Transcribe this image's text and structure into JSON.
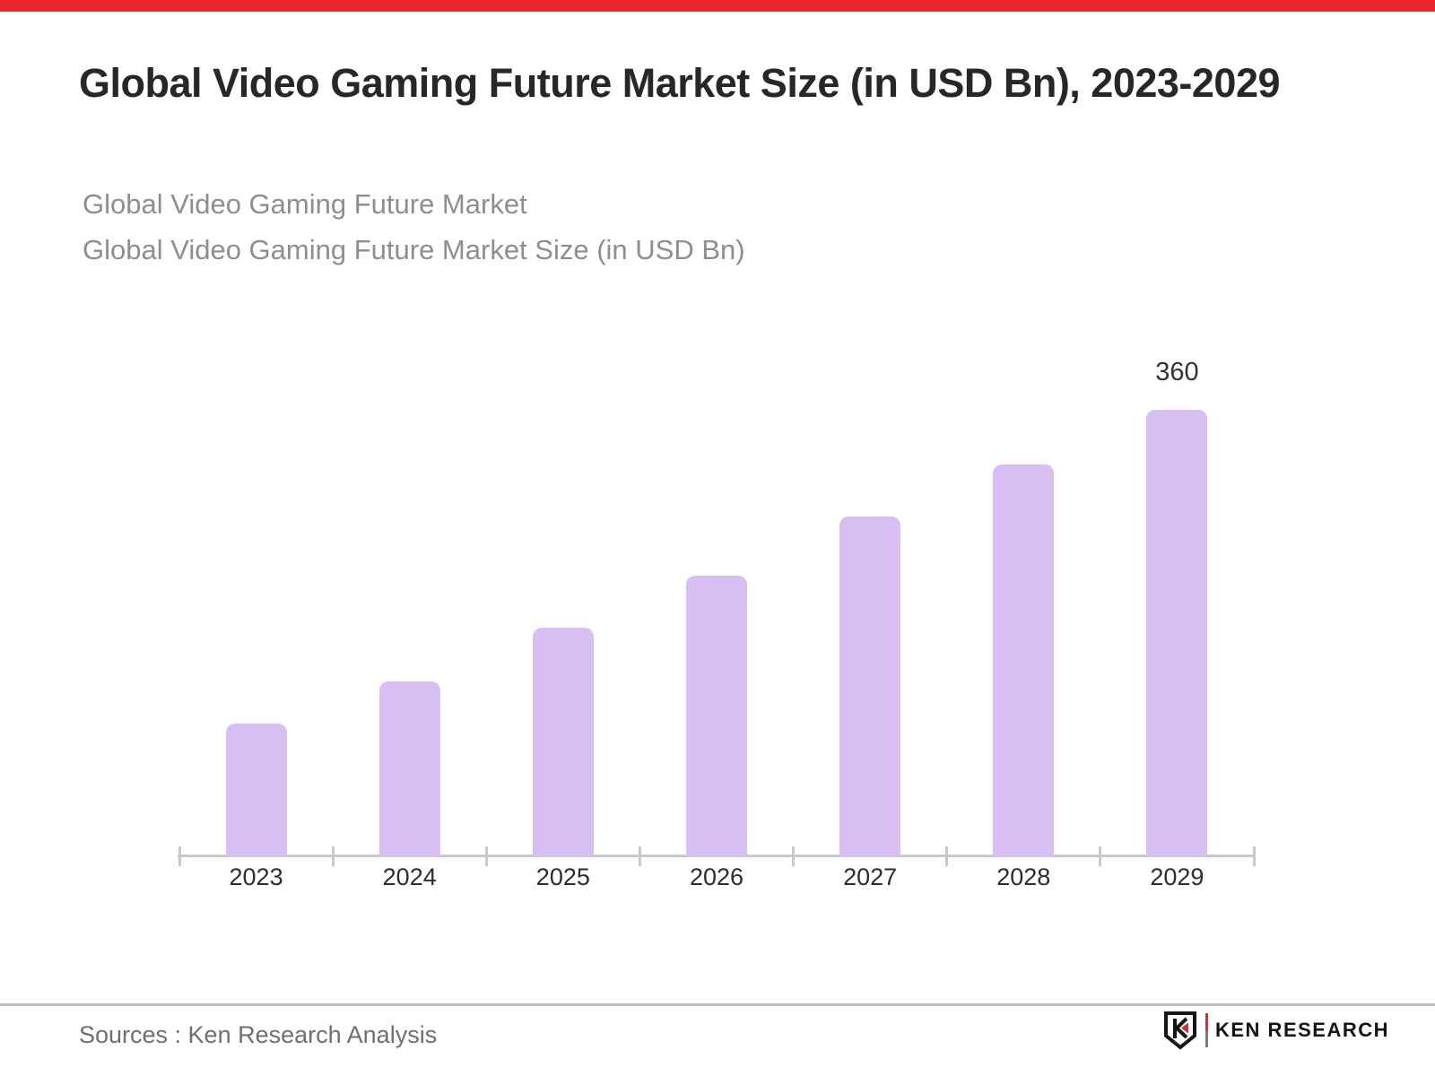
{
  "header": {
    "title": "Global Video Gaming Future Market Size (in USD Bn), 2023-2029",
    "subtitle1": "Global Video Gaming Future Market",
    "subtitle2": "Global Video Gaming Future Market Size (in USD Bn)"
  },
  "chart_data": {
    "type": "bar",
    "title": "Global Video Gaming Future Market Size (in USD Bn), 2023-2029",
    "categories": [
      "2023",
      "2024",
      "2025",
      "2026",
      "2027",
      "2028",
      "2029"
    ],
    "values": [
      107,
      141,
      184,
      226,
      274,
      316,
      360
    ],
    "bar_labels": [
      "",
      "",
      "",
      "",
      "",
      "",
      "360"
    ],
    "xlabel": "",
    "ylabel": "",
    "ylim": [
      0,
      380
    ],
    "grid": false,
    "legend": false
  },
  "footer": {
    "source_text": "Sources : Ken Research Analysis",
    "logo_text": "KEN RESEARCH"
  },
  "colors": {
    "accent_red": "#e8262d",
    "bar_fill": "#d9bef3",
    "axis": "#c9c9c9",
    "title_text": "#272727",
    "subtitle_text": "#8e8e8e",
    "category_text": "#2d2d2d",
    "value_label_text": "#333333",
    "source_text": "#6f6f6f"
  }
}
